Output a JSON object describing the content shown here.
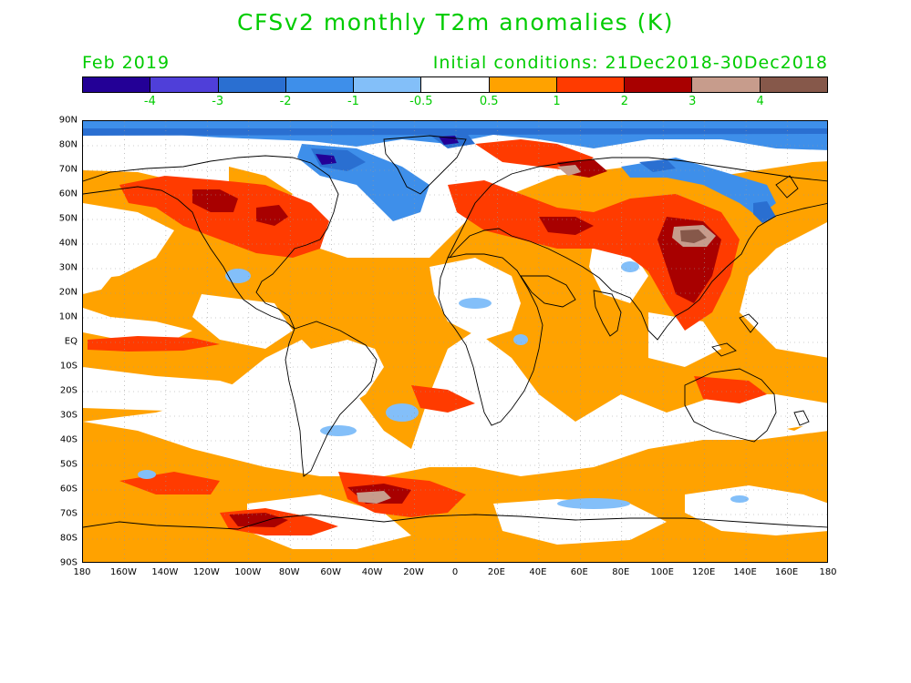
{
  "title": "CFSv2 monthly T2m anomalies (K)",
  "valid_month": "Feb 2019",
  "initial_conditions": "Initial conditions: 21Dec2018-30Dec2018",
  "colorbar": {
    "colors": [
      "#230096",
      "#4f3fd9",
      "#2a6fd1",
      "#3e8fea",
      "#83bff9",
      "#ffffff",
      "#ffa200",
      "#ff3b00",
      "#a80000",
      "#c79c8c",
      "#86584a"
    ],
    "labels": [
      "-4",
      "-3",
      "-2",
      "-1",
      "-0.5",
      "0.5",
      "1",
      "2",
      "3",
      "4"
    ]
  },
  "axes": {
    "lat_labels": [
      "90N",
      "80N",
      "70N",
      "60N",
      "50N",
      "40N",
      "30N",
      "20N",
      "10N",
      "EQ",
      "10S",
      "20S",
      "30S",
      "40S",
      "50S",
      "60S",
      "70S",
      "80S",
      "90S"
    ],
    "lon_labels": [
      "180",
      "160W",
      "140W",
      "120W",
      "100W",
      "80W",
      "60W",
      "40W",
      "20W",
      "0",
      "20E",
      "40E",
      "60E",
      "80E",
      "100E",
      "120E",
      "140E",
      "160E",
      "180"
    ]
  },
  "map": {
    "ocean_color": "#ffffff",
    "coastline_color": "#000000",
    "grid_line_style": "dotted"
  }
}
